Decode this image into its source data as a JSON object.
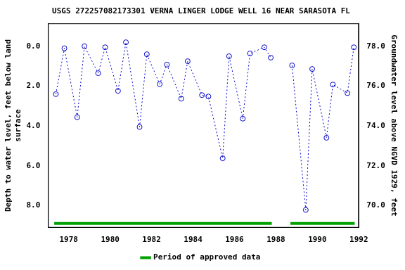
{
  "chart_data": {
    "type": "line",
    "title": "USGS 272257082173301 VERNA LINGER LODGE WELL 16 NEAR SARASOTA FL",
    "y_label": [
      "Depth to water level, feet below land",
      "surface"
    ],
    "y2_label": "Groundwater level above NGVD 1929, feet",
    "x": [
      1977.38,
      1977.79,
      1978.41,
      1978.76,
      1979.42,
      1979.76,
      1980.38,
      1980.76,
      1981.42,
      1981.77,
      1982.39,
      1982.74,
      1983.43,
      1983.74,
      1984.43,
      1984.74,
      1985.43,
      1985.74,
      1986.4,
      1986.75,
      1987.44,
      1987.75,
      1988.2,
      1988.78,
      1989.44,
      1989.75,
      1990.44,
      1990.75,
      1991.45,
      1991.76
    ],
    "values": [
      2.4,
      0.1,
      3.56,
      0.0,
      1.35,
      0.05,
      2.24,
      -0.2,
      4.05,
      0.4,
      1.9,
      0.92,
      2.63,
      0.75,
      2.45,
      2.52,
      5.62,
      0.5,
      3.63,
      0.36,
      0.05,
      0.57,
      null,
      0.96,
      8.21,
      1.14,
      4.59,
      1.92,
      2.35,
      0.05
    ],
    "color": "#0000cc",
    "marker": "circle",
    "line_style": "dotted",
    "xlim": [
      1977,
      1992
    ],
    "xticks": [
      1978,
      1980,
      1982,
      1984,
      1986,
      1988,
      1990,
      1992
    ],
    "ylim": [
      9.1,
      -1.15
    ],
    "yticks": [
      {
        "value": 0,
        "label": "0.0"
      },
      {
        "value": 2,
        "label": "2.0"
      },
      {
        "value": 4,
        "label": "4.0"
      },
      {
        "value": 6,
        "label": "6.0"
      },
      {
        "value": 8,
        "label": "8.0"
      }
    ],
    "y2lim": [
      68.9,
      79.15
    ],
    "y2ticks": [
      {
        "value": 70,
        "label": "70.0"
      },
      {
        "value": 72,
        "label": "72.0"
      },
      {
        "value": 74,
        "label": "74.0"
      },
      {
        "value": 76,
        "label": "76.0"
      },
      {
        "value": 78,
        "label": "78.0"
      }
    ],
    "grid": false,
    "legend": "bottom",
    "approved_periods": {
      "name": "Period of approved data",
      "color": "#00a000",
      "ranges": [
        [
          1977.3,
          1987.8
        ],
        [
          1988.7,
          1991.8
        ]
      ]
    }
  }
}
